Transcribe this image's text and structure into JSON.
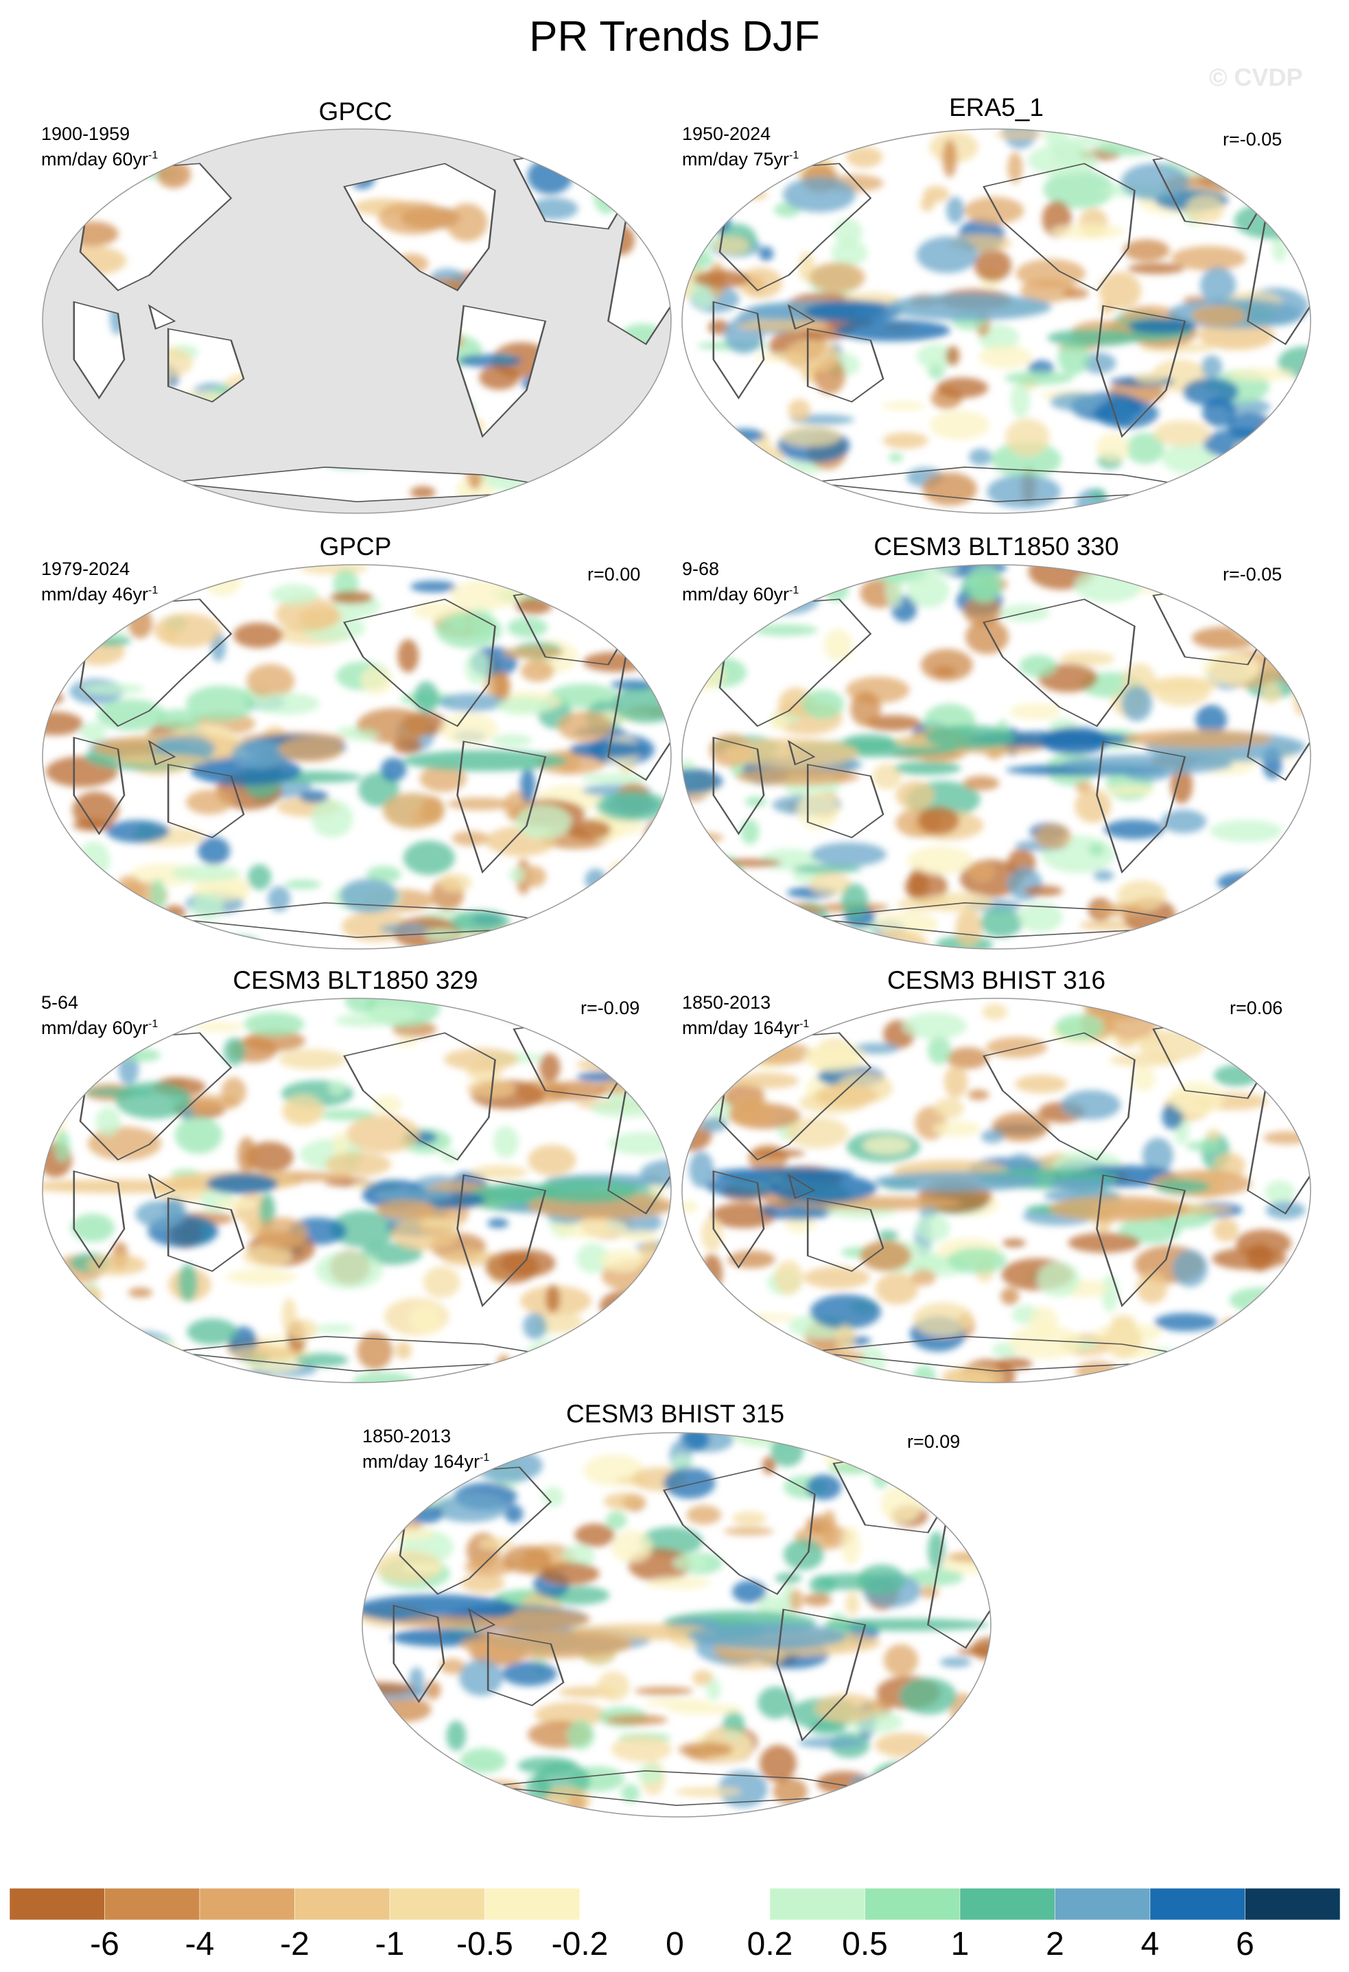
{
  "title": "PR Trends DJF",
  "watermark": "© CVDP",
  "panels": [
    {
      "title": "GPCC",
      "period": "1900-1959",
      "units": "mm/day 60yr",
      "units_sup": "-1",
      "corr": "",
      "masked_ocean": true
    },
    {
      "title": "ERA5_1",
      "period": "1950-2024",
      "units": "mm/day 75yr",
      "units_sup": "-1",
      "corr": "r=-0.05",
      "masked_ocean": false
    },
    {
      "title": "GPCP",
      "period": "1979-2024",
      "units": "mm/day 46yr",
      "units_sup": "-1",
      "corr": "r=0.00",
      "masked_ocean": false
    },
    {
      "title": "CESM3 BLT1850 330",
      "period": "9-68",
      "units": "mm/day 60yr",
      "units_sup": "-1",
      "corr": "r=-0.05",
      "masked_ocean": false
    },
    {
      "title": "CESM3 BLT1850 329",
      "period": "5-64",
      "units": "mm/day 60yr",
      "units_sup": "-1",
      "corr": "r=-0.09",
      "masked_ocean": false
    },
    {
      "title": "CESM3 BHIST 316",
      "period": "1850-2013",
      "units": "mm/day 164yr",
      "units_sup": "-1",
      "corr": "r=0.06",
      "masked_ocean": false
    },
    {
      "title": "CESM3 BHIST 315",
      "period": "1850-2013",
      "units": "mm/day 164yr",
      "units_sup": "-1",
      "corr": "r=0.09",
      "masked_ocean": false
    }
  ],
  "colorbar": {
    "labels": [
      "-6",
      "-4",
      "-2",
      "-1",
      "-0.5",
      "-0.2",
      "0",
      "0.2",
      "0.5",
      "1",
      "2",
      "4",
      "6"
    ],
    "colors": [
      "#b8692e",
      "#cd8a4a",
      "#dfa86a",
      "#edc88a",
      "#f4dea4",
      "#fbf3c2",
      "#ffffff",
      "#ffffff",
      "#c6f5cd",
      "#98e6b1",
      "#56be99",
      "#6aa6c8",
      "#1a6db0",
      "#0c3b5e"
    ]
  },
  "colors": {
    "land_mask": "#e3e3e3",
    "coast": "#555555"
  }
}
